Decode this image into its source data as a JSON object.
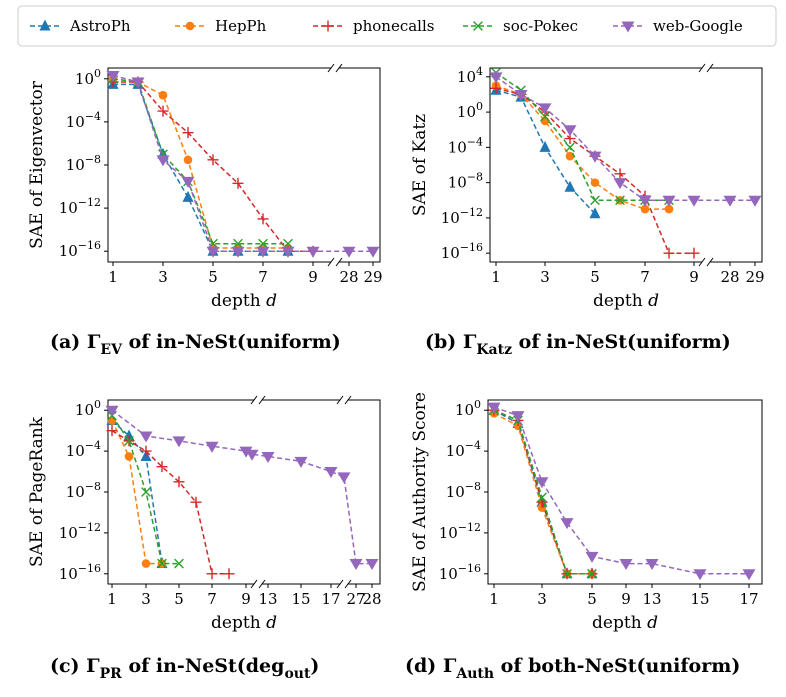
{
  "legend": {
    "entries": [
      {
        "name": "AstroPh",
        "color": "#1f77b4",
        "marker": "triangle-up"
      },
      {
        "name": "HepPh",
        "color": "#ff7f0e",
        "marker": "circle"
      },
      {
        "name": "phonecalls",
        "color": "#d62728",
        "marker": "plus"
      },
      {
        "name": "soc-Pokec",
        "color": "#2ca02c",
        "marker": "x"
      },
      {
        "name": "web-Google",
        "color": "#9467bd",
        "marker": "triangle-down"
      }
    ]
  },
  "chart_data": [
    {
      "type": "line",
      "panel": "a",
      "caption": {
        "prefix": "(a) Γ",
        "sub": "EV",
        "suffix": " of in-NeSt(uniform)",
        "sub2": ""
      },
      "xlabel": "depth d",
      "ylabel": "SAE of Eigenvector",
      "ylog": true,
      "ylim": [
        1e-17,
        10
      ],
      "yticks": [
        {
          "v": 1,
          "label": "10^0"
        },
        {
          "v": 0.0001,
          "label": "10^-4"
        },
        {
          "v": 1e-08,
          "label": "10^-8"
        },
        {
          "v": 1e-12,
          "label": "10^-12"
        },
        {
          "v": 1e-16,
          "label": "10^-16"
        }
      ],
      "xticks": [
        {
          "x": 1,
          "label": "1"
        },
        {
          "x": 3,
          "label": "3"
        },
        {
          "x": 5,
          "label": "5"
        },
        {
          "x": 7,
          "label": "7"
        },
        {
          "x": 9,
          "label": "9"
        },
        {
          "x": 28,
          "label": "28"
        },
        {
          "x": 29,
          "label": "29"
        }
      ],
      "series": [
        {
          "name": "AstroPh",
          "x": [
            1,
            2,
            3,
            4,
            5,
            6,
            7,
            8
          ],
          "y": [
            0.3,
            0.3,
            1e-07,
            1e-11,
            1e-16,
            1e-16,
            1e-16,
            1e-16
          ]
        },
        {
          "name": "HepPh",
          "x": [
            1,
            2,
            3,
            4,
            5,
            6,
            7,
            8
          ],
          "y": [
            1,
            0.5,
            0.03,
            3e-08,
            2e-16,
            2e-16,
            2e-16,
            2e-16
          ]
        },
        {
          "name": "phonecalls",
          "x": [
            1,
            2,
            3,
            4,
            5,
            6,
            7,
            8,
            9
          ],
          "y": [
            0.5,
            0.5,
            0.001,
            1e-05,
            3e-08,
            2e-10,
            1e-13,
            1e-16,
            1e-16
          ]
        },
        {
          "name": "soc-Pokec",
          "x": [
            1,
            2,
            3,
            4,
            5,
            6,
            7,
            8
          ],
          "y": [
            1,
            0.5,
            1e-07,
            3e-10,
            5e-16,
            5e-16,
            5e-16,
            5e-16
          ]
        },
        {
          "name": "web-Google",
          "x": [
            1,
            2,
            3,
            4,
            5,
            6,
            7,
            8,
            9,
            28,
            29
          ],
          "y": [
            2,
            0.5,
            3e-08,
            3e-10,
            1e-16,
            1e-16,
            1e-16,
            1e-16,
            1e-16,
            1e-16,
            1e-16
          ]
        }
      ]
    },
    {
      "type": "line",
      "panel": "b",
      "caption": {
        "prefix": "(b) Γ",
        "sub": "Katz",
        "suffix": " of in-NeSt(uniform)",
        "sub2": ""
      },
      "xlabel": "depth d",
      "ylabel": "SAE of Katz",
      "ylog": true,
      "ylim": [
        1e-17,
        100000.0
      ],
      "yticks": [
        {
          "v": 10000,
          "label": "10^4"
        },
        {
          "v": 1,
          "label": "10^0"
        },
        {
          "v": 0.0001,
          "label": "10^-4"
        },
        {
          "v": 1e-08,
          "label": "10^-8"
        },
        {
          "v": 1e-12,
          "label": "10^-12"
        },
        {
          "v": 1e-16,
          "label": "10^-16"
        }
      ],
      "xticks": [
        {
          "x": 1,
          "label": "1"
        },
        {
          "x": 3,
          "label": "3"
        },
        {
          "x": 5,
          "label": "5"
        },
        {
          "x": 7,
          "label": "7"
        },
        {
          "x": 9,
          "label": "9"
        },
        {
          "x": 28,
          "label": "28"
        },
        {
          "x": 29,
          "label": "29"
        }
      ],
      "series": [
        {
          "name": "AstroPh",
          "x": [
            1,
            2,
            3,
            4,
            5
          ],
          "y": [
            300,
            50,
            0.0001,
            3e-09,
            3e-12
          ]
        },
        {
          "name": "HepPh",
          "x": [
            1,
            2,
            3,
            4,
            5,
            6,
            7,
            8
          ],
          "y": [
            1000,
            100,
            0.1,
            1e-05,
            1e-08,
            1e-10,
            1e-11,
            1e-11
          ]
        },
        {
          "name": "phonecalls",
          "x": [
            1,
            2,
            3,
            4,
            5,
            6,
            7,
            8,
            9
          ],
          "y": [
            500,
            100,
            1,
            0.001,
            1e-05,
            1e-07,
            3e-10,
            1e-16,
            1e-16
          ]
        },
        {
          "name": "soc-Pokec",
          "x": [
            1,
            2,
            3,
            4,
            5,
            6,
            7,
            8
          ],
          "y": [
            30000,
            300,
            0.3,
            0.0001,
            1e-10,
            1e-10,
            1e-10,
            1e-10
          ]
        },
        {
          "name": "web-Google",
          "x": [
            1,
            2,
            3,
            4,
            5,
            6,
            7,
            8,
            9,
            28,
            29
          ],
          "y": [
            10000,
            100,
            3,
            0.01,
            1e-05,
            1e-08,
            1e-10,
            1e-10,
            1e-10,
            1e-10,
            1e-10
          ]
        }
      ]
    },
    {
      "type": "line",
      "panel": "c",
      "caption": {
        "prefix": "(c) Γ",
        "sub": "PR",
        "suffix": " of in-NeSt(deg",
        "sub2": "out"
      },
      "xlabel": "depth d",
      "ylabel": "SAE of PageRank",
      "ylog": true,
      "ylim": [
        1e-17,
        10
      ],
      "yticks": [
        {
          "v": 1,
          "label": "10^0"
        },
        {
          "v": 0.0001,
          "label": "10^-4"
        },
        {
          "v": 1e-08,
          "label": "10^-8"
        },
        {
          "v": 1e-12,
          "label": "10^-12"
        },
        {
          "v": 1e-16,
          "label": "10^-16"
        }
      ],
      "xticks": [
        {
          "x": 1,
          "label": "1"
        },
        {
          "x": 3,
          "label": "3"
        },
        {
          "x": 5,
          "label": "5"
        },
        {
          "x": 7,
          "label": "7"
        },
        {
          "x": 9,
          "label": "9"
        },
        {
          "x": 13,
          "label": "13"
        },
        {
          "x": 15,
          "label": "15"
        },
        {
          "x": 17,
          "label": "17"
        },
        {
          "x": 27,
          "label": "27"
        },
        {
          "x": 28,
          "label": "28"
        }
      ],
      "series": [
        {
          "name": "AstroPh",
          "x": [
            1,
            2,
            3,
            4
          ],
          "y": [
            0.1,
            0.003,
            3e-05,
            1e-15
          ]
        },
        {
          "name": "HepPh",
          "x": [
            1,
            2,
            3,
            4
          ],
          "y": [
            0.1,
            3e-05,
            1e-15,
            1e-15
          ]
        },
        {
          "name": "phonecalls",
          "x": [
            1,
            2,
            3,
            4,
            5,
            6,
            7,
            8
          ],
          "y": [
            0.01,
            0.001,
            0.0001,
            3e-06,
            1e-07,
            1e-09,
            1e-16,
            1e-16
          ]
        },
        {
          "name": "soc-Pokec",
          "x": [
            1,
            2,
            3,
            4,
            5
          ],
          "y": [
            0.3,
            0.001,
            1e-08,
            1e-15,
            1e-15
          ]
        },
        {
          "name": "web-Google",
          "x": [
            1,
            3,
            5,
            7,
            9,
            11,
            13,
            15,
            17,
            19,
            27,
            28
          ],
          "y": [
            1,
            0.003,
            0.001,
            0.0003,
            0.0001,
            5e-05,
            3e-05,
            1e-05,
            1e-06,
            3e-07,
            1e-15,
            1e-15
          ]
        }
      ]
    },
    {
      "type": "line",
      "panel": "d",
      "caption": {
        "prefix": "(d) Γ",
        "sub": "Auth",
        "suffix": " of both-NeSt(uniform)",
        "sub2": ""
      },
      "xlabel": "depth d",
      "ylabel": "SAE of Authority Score",
      "ylog": true,
      "ylim": [
        1e-17,
        10
      ],
      "yticks": [
        {
          "v": 1,
          "label": "10^0"
        },
        {
          "v": 0.0001,
          "label": "10^-4"
        },
        {
          "v": 1e-08,
          "label": "10^-8"
        },
        {
          "v": 1e-12,
          "label": "10^-12"
        },
        {
          "v": 1e-16,
          "label": "10^-16"
        }
      ],
      "xticks": [
        {
          "x": 1,
          "label": "1"
        },
        {
          "x": 3,
          "label": "3"
        },
        {
          "x": 5,
          "label": "5"
        },
        {
          "x": 9,
          "label": "9"
        },
        {
          "x": 13,
          "label": "13"
        },
        {
          "x": 15,
          "label": "15"
        },
        {
          "x": 17,
          "label": "17"
        }
      ],
      "series": [
        {
          "name": "AstroPh",
          "x": [
            1,
            2,
            3,
            4,
            5
          ],
          "y": [
            1,
            0.05,
            1e-09,
            1e-16,
            1e-16
          ]
        },
        {
          "name": "HepPh",
          "x": [
            1,
            2,
            3,
            4,
            5
          ],
          "y": [
            0.5,
            0.03,
            3e-10,
            1e-16,
            1e-16
          ]
        },
        {
          "name": "phonecalls",
          "x": [
            1,
            2,
            3,
            4,
            5
          ],
          "y": [
            1,
            0.1,
            1e-09,
            1e-16,
            1e-16
          ]
        },
        {
          "name": "soc-Pokec",
          "x": [
            1,
            2,
            3,
            4,
            5
          ],
          "y": [
            1,
            0.1,
            3e-09,
            1e-16,
            1e-16
          ]
        },
        {
          "name": "web-Google",
          "x": [
            1,
            2,
            3,
            4,
            5,
            9,
            13,
            15,
            17
          ],
          "y": [
            2,
            0.3,
            1e-07,
            1e-11,
            5e-15,
            1e-15,
            1e-15,
            1e-16,
            1e-16
          ]
        }
      ]
    }
  ]
}
